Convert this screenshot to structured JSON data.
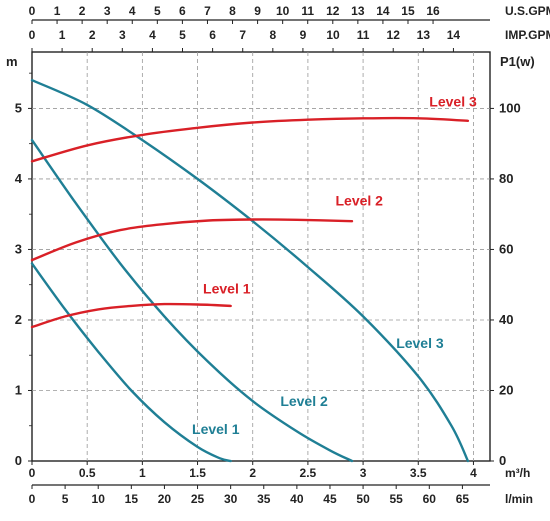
{
  "chart_data": {
    "type": "line",
    "axes": {
      "left_label": "m",
      "right_label": "P1(w)",
      "bottom1_unit": "m³/h",
      "bottom2_unit": "l/min",
      "top1_unit": "U.S.GPM",
      "top2_unit": "IMP.GPM",
      "left_ticks": [
        "0",
        "1",
        "2",
        "3",
        "4",
        "5"
      ],
      "right_ticks": [
        "0",
        "20",
        "40",
        "60",
        "80",
        "100"
      ],
      "bottom1_ticks": [
        "0",
        "0.5",
        "1",
        "1.5",
        "2",
        "2.5",
        "3",
        "3.5",
        "4"
      ],
      "bottom2_ticks": [
        "0",
        "5",
        "10",
        "15",
        "20",
        "25",
        "30",
        "35",
        "40",
        "45",
        "50",
        "55",
        "60",
        "65"
      ],
      "top1_ticks": [
        "0",
        "1",
        "2",
        "3",
        "4",
        "5",
        "6",
        "7",
        "8",
        "9",
        "10",
        "11",
        "12",
        "13",
        "14",
        "15",
        "16"
      ],
      "top2_ticks": [
        "0",
        "1",
        "2",
        "3",
        "4",
        "5",
        "6",
        "7",
        "8",
        "9",
        "10",
        "11",
        "12",
        "13",
        "14"
      ],
      "x_range_m3h": [
        0,
        4.15
      ],
      "head_range_m": [
        0,
        5.8
      ],
      "power_range_w": [
        0,
        116
      ],
      "grid": true
    },
    "head_series": [
      {
        "name": "Level 1",
        "color": "#1f7f95",
        "points": [
          [
            0,
            2.8
          ],
          [
            0.3,
            2.15
          ],
          [
            0.6,
            1.55
          ],
          [
            0.9,
            1.0
          ],
          [
            1.2,
            0.55
          ],
          [
            1.5,
            0.2
          ],
          [
            1.7,
            0.04
          ],
          [
            1.8,
            0
          ]
        ]
      },
      {
        "name": "Level 2",
        "color": "#1f7f95",
        "points": [
          [
            0,
            4.55
          ],
          [
            0.4,
            3.65
          ],
          [
            0.8,
            2.8
          ],
          [
            1.2,
            2.05
          ],
          [
            1.6,
            1.4
          ],
          [
            2.0,
            0.85
          ],
          [
            2.4,
            0.42
          ],
          [
            2.7,
            0.15
          ],
          [
            2.9,
            0
          ]
        ]
      },
      {
        "name": "Level 3",
        "color": "#1f7f95",
        "points": [
          [
            0,
            5.4
          ],
          [
            0.5,
            5.05
          ],
          [
            1.0,
            4.55
          ],
          [
            1.5,
            4.0
          ],
          [
            2.0,
            3.4
          ],
          [
            2.5,
            2.75
          ],
          [
            3.0,
            2.05
          ],
          [
            3.5,
            1.2
          ],
          [
            3.8,
            0.5
          ],
          [
            3.95,
            0
          ]
        ]
      }
    ],
    "power_series": [
      {
        "name": "Level 1",
        "color": "#d92027",
        "points": [
          [
            0,
            38
          ],
          [
            0.3,
            41
          ],
          [
            0.6,
            43
          ],
          [
            0.9,
            44
          ],
          [
            1.2,
            44.5
          ],
          [
            1.5,
            44.4
          ],
          [
            1.8,
            44
          ]
        ]
      },
      {
        "name": "Level 2",
        "color": "#d92027",
        "points": [
          [
            0,
            57
          ],
          [
            0.4,
            62
          ],
          [
            0.8,
            65.5
          ],
          [
            1.2,
            67.2
          ],
          [
            1.6,
            68.2
          ],
          [
            2.0,
            68.5
          ],
          [
            2.4,
            68.4
          ],
          [
            2.9,
            68
          ]
        ]
      },
      {
        "name": "Level 3",
        "color": "#d92027",
        "points": [
          [
            0,
            85
          ],
          [
            0.5,
            89.5
          ],
          [
            1.0,
            92.5
          ],
          [
            1.5,
            94.5
          ],
          [
            2.0,
            96
          ],
          [
            2.5,
            96.8
          ],
          [
            3.0,
            97.2
          ],
          [
            3.5,
            97.2
          ],
          [
            3.95,
            96.5
          ]
        ]
      }
    ],
    "head_labels": [
      {
        "text": "Level 1",
        "x": 1.45,
        "y": 0.38
      },
      {
        "text": "Level 2",
        "x": 2.25,
        "y": 0.78
      },
      {
        "text": "Level 3",
        "x": 3.3,
        "y": 1.6
      }
    ],
    "power_labels": [
      {
        "text": "Level 1",
        "x": 1.55,
        "y": 47.5
      },
      {
        "text": "Level 2",
        "x": 2.75,
        "y": 72.5
      },
      {
        "text": "Level 3",
        "x": 3.6,
        "y": 100.5
      }
    ]
  }
}
